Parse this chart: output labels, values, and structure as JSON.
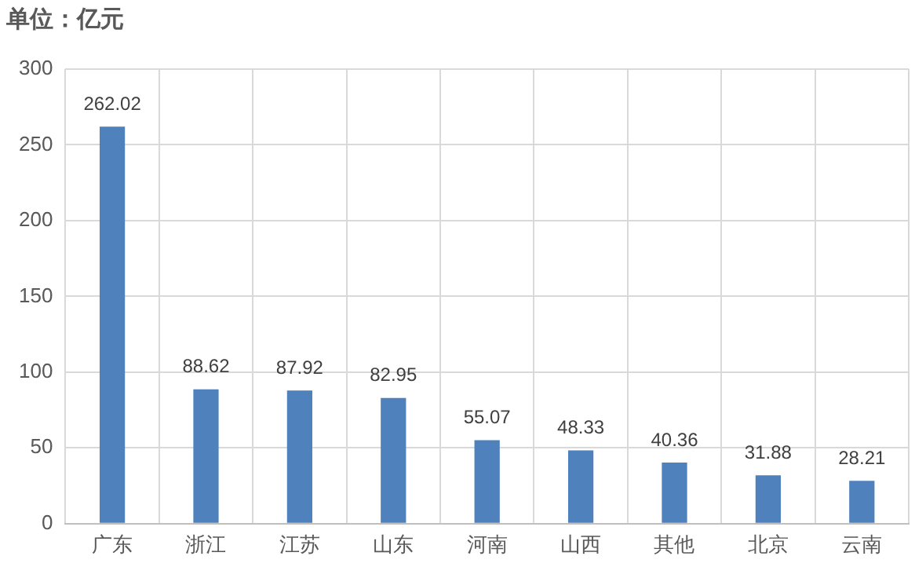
{
  "chart_data": {
    "type": "bar",
    "title": "单位：亿元",
    "categories": [
      "广东",
      "浙江",
      "江苏",
      "山东",
      "河南",
      "山西",
      "其他",
      "北京",
      "云南"
    ],
    "values": [
      262.02,
      88.62,
      87.92,
      82.95,
      55.07,
      48.33,
      40.36,
      31.88,
      28.21
    ],
    "color": "#4f81bd",
    "ylim": [
      0,
      300
    ],
    "yticks": [
      0,
      50,
      100,
      150,
      200,
      250,
      300
    ],
    "grid": true,
    "data_labels": true,
    "legend": false
  }
}
